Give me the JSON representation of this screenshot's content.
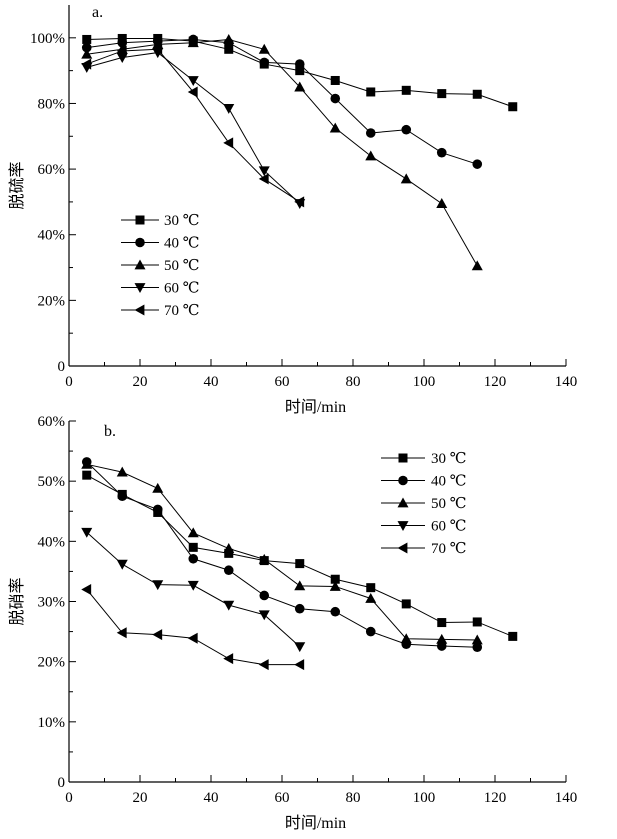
{
  "chart_data": [
    {
      "type": "line",
      "panel_label": "a.",
      "xlabel": "时间/min",
      "ylabel": "脱硫率",
      "xlim": [
        0,
        140
      ],
      "ylim": [
        0,
        110
      ],
      "x_ticks": [
        0,
        20,
        40,
        60,
        80,
        100,
        120,
        140
      ],
      "x_tick_labels": [
        "0",
        "20",
        "40",
        "60",
        "80",
        "100",
        "120",
        "140"
      ],
      "y_ticks": [
        0,
        20,
        40,
        60,
        80,
        100
      ],
      "y_tick_labels": [
        "0",
        "20%",
        "40%",
        "60%",
        "80%",
        "100%"
      ],
      "legend_position": "lower-left",
      "series": [
        {
          "name": "30 ℃",
          "marker": "square",
          "x": [
            5,
            15,
            25,
            35,
            45,
            55,
            65,
            75,
            85,
            95,
            105,
            115,
            125
          ],
          "values": [
            99.5,
            99.8,
            99.8,
            99.0,
            96.5,
            92.0,
            90.0,
            87.0,
            83.5,
            84.0,
            83.0,
            82.8,
            79.0
          ]
        },
        {
          "name": "40 ℃",
          "marker": "circle",
          "x": [
            5,
            15,
            25,
            35,
            45,
            55,
            65,
            75,
            85,
            95,
            105,
            115
          ],
          "values": [
            97.0,
            98.5,
            99.0,
            99.5,
            98.5,
            92.5,
            92.0,
            81.5,
            71.0,
            72.0,
            65.0,
            61.5
          ]
        },
        {
          "name": "50 ℃",
          "marker": "triangle-up",
          "x": [
            5,
            15,
            25,
            35,
            45,
            55,
            65,
            75,
            85,
            95,
            105,
            115
          ],
          "values": [
            95.0,
            96.5,
            98.0,
            98.5,
            99.5,
            96.5,
            85.0,
            72.5,
            64.0,
            57.0,
            49.5,
            30.5
          ]
        },
        {
          "name": "60 ℃",
          "marker": "triangle-down",
          "x": [
            5,
            15,
            25,
            35,
            45,
            55,
            65
          ],
          "values": [
            91.0,
            94.0,
            95.5,
            87.0,
            78.5,
            59.5,
            49.5
          ]
        },
        {
          "name": "70 ℃",
          "marker": "triangle-left",
          "x": [
            5,
            15,
            25,
            35,
            45,
            55,
            65
          ],
          "values": [
            92.0,
            96.0,
            96.5,
            83.5,
            68.0,
            57.0,
            50.0
          ]
        }
      ]
    },
    {
      "type": "line",
      "panel_label": "b.",
      "xlabel": "时间/min",
      "ylabel": "脱硝率",
      "xlim": [
        0,
        140
      ],
      "ylim": [
        0,
        60
      ],
      "x_ticks": [
        0,
        20,
        40,
        60,
        80,
        100,
        120,
        140
      ],
      "x_tick_labels": [
        "0",
        "20",
        "40",
        "60",
        "80",
        "100",
        "120",
        "140"
      ],
      "y_ticks": [
        0,
        10,
        20,
        30,
        40,
        50,
        60
      ],
      "y_tick_labels": [
        "0",
        "10%",
        "20%",
        "30%",
        "40%",
        "50%",
        "60%"
      ],
      "legend_position": "upper-right",
      "series": [
        {
          "name": "30 ℃",
          "marker": "square",
          "x": [
            5,
            15,
            25,
            35,
            45,
            55,
            65,
            75,
            85,
            95,
            105,
            115,
            125
          ],
          "values": [
            51.0,
            47.8,
            44.8,
            39.0,
            38.0,
            36.8,
            36.3,
            33.7,
            32.3,
            29.6,
            26.5,
            26.6,
            24.2
          ]
        },
        {
          "name": "40 ℃",
          "marker": "circle",
          "x": [
            5,
            15,
            25,
            35,
            45,
            55,
            65,
            75,
            85,
            95,
            105,
            115
          ],
          "values": [
            53.2,
            47.5,
            45.3,
            37.1,
            35.2,
            31.0,
            28.8,
            28.3,
            25.0,
            22.9,
            22.6,
            22.4
          ]
        },
        {
          "name": "50 ℃",
          "marker": "triangle-up",
          "x": [
            5,
            15,
            25,
            35,
            45,
            55,
            65,
            75,
            85,
            95,
            105,
            115
          ],
          "values": [
            52.8,
            51.5,
            48.8,
            41.4,
            38.8,
            37.0,
            32.6,
            32.5,
            30.5,
            23.8,
            23.7,
            23.6
          ]
        },
        {
          "name": "60 ℃",
          "marker": "triangle-down",
          "x": [
            5,
            15,
            25,
            35,
            45,
            55,
            65
          ],
          "values": [
            41.5,
            36.2,
            32.8,
            32.7,
            29.4,
            27.8,
            22.5
          ]
        },
        {
          "name": "70 ℃",
          "marker": "triangle-left",
          "x": [
            5,
            15,
            25,
            35,
            45,
            55,
            65
          ],
          "values": [
            32.0,
            24.8,
            24.5,
            23.9,
            20.5,
            19.5,
            19.5
          ]
        }
      ]
    }
  ]
}
